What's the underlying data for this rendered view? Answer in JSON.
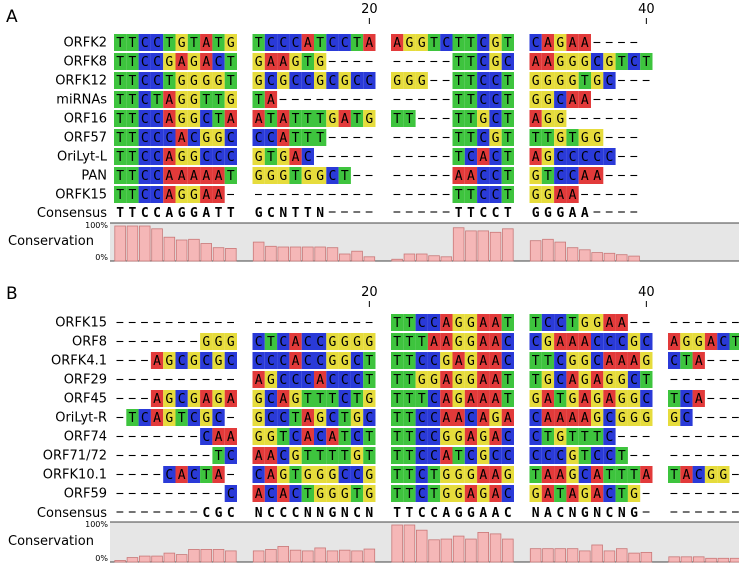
{
  "colors": {
    "A": "#3ec43e",
    "C": "#2a3ad8",
    "G": "#e8e040",
    "T": "#3ec43e",
    "bar_fill": "#f5b7b7",
    "bar_stroke": "#c87878",
    "track_bg": "#e6e6e6"
  },
  "panels": [
    {
      "label": "A",
      "ruler": [
        {
          "col": 20,
          "label": "20"
        },
        {
          "col": 40,
          "label": "40"
        }
      ],
      "rows": [
        {
          "name": "ORFK2",
          "seq": "TTCCTGTATG TCCCATCCTA AGGTCTTCGT CAGAA----"
        },
        {
          "name": "ORFK8",
          "seq": "TTCCGAGACT GAAGTG---- -----TTCGC AAGGGCGTCT"
        },
        {
          "name": "ORFK12",
          "seq": "TTCCTGGGGT GCGCCGCGCC GGG--TTCCT GGGGTGC---"
        },
        {
          "name": "miRNAs",
          "seq": "TTCTAGGTTG TA-------- -----TTCCT GGCAA----"
        },
        {
          "name": "ORF16",
          "seq": "TTCCAGGCTA ATATTTGATG TT---TTGCT AGG------"
        },
        {
          "name": "ORF57",
          "seq": "TTCCCACGGC CCATTT---- -----TTCGT TTGTGG---"
        },
        {
          "name": "OriLyt-L",
          "seq": "TTCCAGGCCC GTGAC----- -----TCACT AGCCCCC--"
        },
        {
          "name": "PAN",
          "seq": "TTCCAAAAAT GGGTGGCT-- -----AACCT GTCCAA---"
        },
        {
          "name": "ORFK15",
          "seq": "TTCCAGGAA- ---------- -----TTCCT GGAA-----"
        }
      ],
      "consensus_label": "Consensus",
      "consensus": "TTCCAGGATT GCNTTN---- -----TTCCT GGGAA----",
      "conservation_label": "Conservation",
      "pct_top": "100%",
      "pct_bottom": "0%",
      "conservation": [
        1.0,
        1.0,
        1.0,
        0.92,
        0.68,
        0.6,
        0.62,
        0.5,
        0.38,
        0.36,
        0.54,
        0.42,
        0.4,
        0.4,
        0.4,
        0.4,
        0.38,
        0.2,
        0.28,
        0.12,
        0.05,
        0.2,
        0.2,
        0.15,
        0.12,
        0.95,
        0.86,
        0.86,
        0.82,
        0.92,
        0.58,
        0.62,
        0.54,
        0.38,
        0.32,
        0.24,
        0.22,
        0.18,
        0.14
      ]
    },
    {
      "label": "B",
      "ruler": [
        {
          "col": 20,
          "label": "20"
        },
        {
          "col": 40,
          "label": "40"
        }
      ],
      "rows": [
        {
          "name": "ORFK15",
          "seq": "---------- ---------- TTCCAGGAAT TCCTGGAA-- ------"
        },
        {
          "name": "ORF8",
          "seq": "-------GGG CTCACCGGGG TTTAAGGAAC CGAAACCCGC AGGACT"
        },
        {
          "name": "ORFK4.1",
          "seq": "---AGCGCGC CCCACCGGCT TTCCGAGAAC TTCGGCAAAG CTA---"
        },
        {
          "name": "ORF29",
          "seq": "---------- AGCCCACCCT TTGGAGGAAT TGCAGAGGCT ------"
        },
        {
          "name": "ORF45",
          "seq": "---AGCGAGA GCAGTTTCTG TTTCAGAAAT GATGAGAGGC TCA---"
        },
        {
          "name": "OriLyt-R",
          "seq": "-TCAGTCGC- GCCTAGCTGC TTCCAACAGA CAAAAGCGGG GC----"
        },
        {
          "name": "ORF74",
          "seq": "-------CAA GGTCACATCT TTCCGGAGAC CTGTTTC--- ------"
        },
        {
          "name": "ORF71/72",
          "seq": "--------TC AACGTTTTGT TTCCATCGCC CCCGTCCT-- ------"
        },
        {
          "name": "ORFK10.1",
          "seq": "----CACTA- CAGTGGGCCG TTCTGGGAAG TAAGCATTTA TACGG-"
        },
        {
          "name": "ORF59",
          "seq": "---------C ACACTGGGTG TTCTGGAGAC GATAGACTG- ------"
        }
      ],
      "consensus_label": "Consensus",
      "consensus": "-------CGC NCCCNNGNCN TTCCAGGAAC NACNGNCNG- ------",
      "conservation_label": "Conservation",
      "pct_top": "100%",
      "pct_bottom": "0%",
      "conservation": [
        0.03,
        0.12,
        0.16,
        0.16,
        0.24,
        0.2,
        0.34,
        0.34,
        0.34,
        0.3,
        0.3,
        0.34,
        0.42,
        0.32,
        0.3,
        0.38,
        0.3,
        0.32,
        0.3,
        0.35,
        1.0,
        1.0,
        0.86,
        0.6,
        0.62,
        0.7,
        0.62,
        0.8,
        0.76,
        0.62,
        0.36,
        0.36,
        0.36,
        0.36,
        0.3,
        0.46,
        0.3,
        0.36,
        0.24,
        0.26,
        0.14,
        0.14,
        0.14,
        0.1,
        0.1,
        0.1
      ]
    }
  ]
}
